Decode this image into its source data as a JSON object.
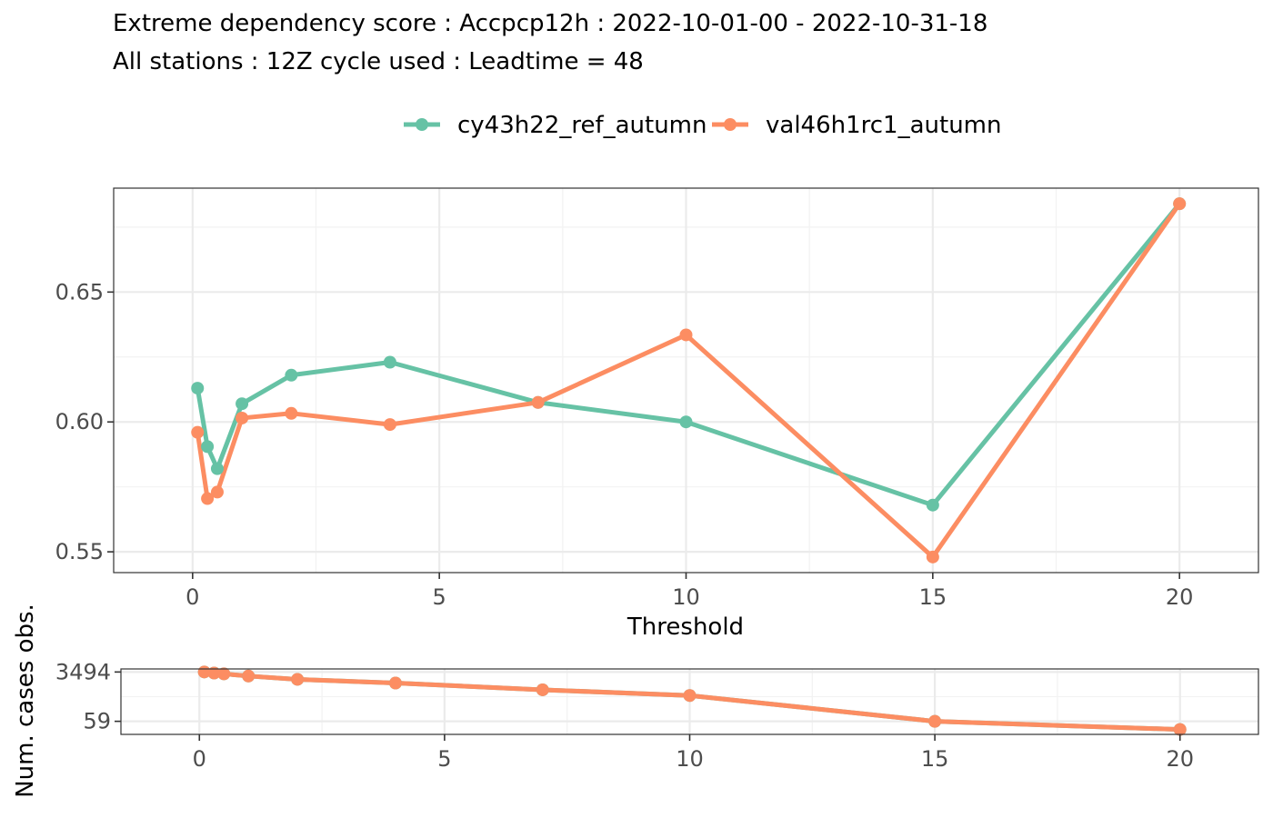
{
  "title": "Extreme dependency score : Accpcp12h : 2022-10-01-00 - 2022-10-31-18",
  "subtitle": "All stations : 12Z cycle used : Leadtime = 48",
  "colors": {
    "cy43h22_ref_autumn": "#66c2a5",
    "val46h1rc1_autumn": "#fc8d62"
  },
  "chart_data": [
    {
      "type": "line",
      "title": "Extreme dependency score : Accpcp12h : 2022-10-01-00 - 2022-10-31-18",
      "subtitle": "All stations : 12Z cycle used : Leadtime = 48",
      "xlabel": "Threshold",
      "ylabel": "",
      "xlim": [
        -1.6,
        21.6
      ],
      "ylim": [
        0.542,
        0.69
      ],
      "x_ticks": [
        0,
        5,
        10,
        15,
        20
      ],
      "x_tick_labels": [
        "0",
        "5",
        "10",
        "15",
        "20"
      ],
      "y_ticks": [
        0.55,
        0.6,
        0.65
      ],
      "y_tick_labels": [
        "0.55",
        "0.60",
        "0.65"
      ],
      "grid": true,
      "legend": "top",
      "series": [
        {
          "name": "cy43h22_ref_autumn",
          "color": "#66c2a5",
          "points": [
            [
              0.1,
              0.613
            ],
            [
              0.3,
              0.5905
            ],
            [
              0.5,
              0.582
            ],
            [
              1,
              0.607
            ],
            [
              2,
              0.618
            ],
            [
              4,
              0.623
            ],
            [
              7,
              0.6075
            ],
            [
              10,
              0.6
            ],
            [
              15,
              0.568
            ],
            [
              20,
              0.684
            ]
          ]
        },
        {
          "name": "val46h1rc1_autumn",
          "color": "#fc8d62",
          "points": [
            [
              0.1,
              0.596
            ],
            [
              0.3,
              0.5705
            ],
            [
              0.5,
              0.573
            ],
            [
              1,
              0.6015
            ],
            [
              2,
              0.6033
            ],
            [
              4,
              0.599
            ],
            [
              7,
              0.6075
            ],
            [
              10,
              0.6335
            ],
            [
              15,
              0.548
            ],
            [
              20,
              0.684
            ]
          ]
        }
      ]
    },
    {
      "type": "line",
      "xlabel": "",
      "ylabel": "Num. cases obs.",
      "xlim": [
        -1.6,
        21.6
      ],
      "x_ticks": [
        0,
        5,
        10,
        15,
        20
      ],
      "x_tick_labels": [
        "0",
        "5",
        "10",
        "15",
        "20"
      ],
      "y_scale": "log",
      "y_ticks": [
        59,
        3494
      ],
      "y_tick_labels": [
        "59",
        "3494"
      ],
      "ylim": [
        20,
        4500
      ],
      "grid": true,
      "series": [
        {
          "name": "cy43h22_ref_autumn",
          "color": "#66c2a5",
          "points": [
            [
              0.1,
              3494
            ],
            [
              0.3,
              3200
            ],
            [
              0.5,
              3000
            ],
            [
              1,
              2500
            ],
            [
              2,
              1900
            ],
            [
              4,
              1400
            ],
            [
              7,
              800
            ],
            [
              10,
              500
            ],
            [
              15,
              59
            ],
            [
              20,
              30
            ]
          ]
        },
        {
          "name": "val46h1rc1_autumn",
          "color": "#fc8d62",
          "points": [
            [
              0.1,
              3494
            ],
            [
              0.3,
              3200
            ],
            [
              0.5,
              3000
            ],
            [
              1,
              2500
            ],
            [
              2,
              1900
            ],
            [
              4,
              1400
            ],
            [
              7,
              800
            ],
            [
              10,
              500
            ],
            [
              15,
              59
            ],
            [
              20,
              30
            ]
          ]
        }
      ]
    }
  ]
}
